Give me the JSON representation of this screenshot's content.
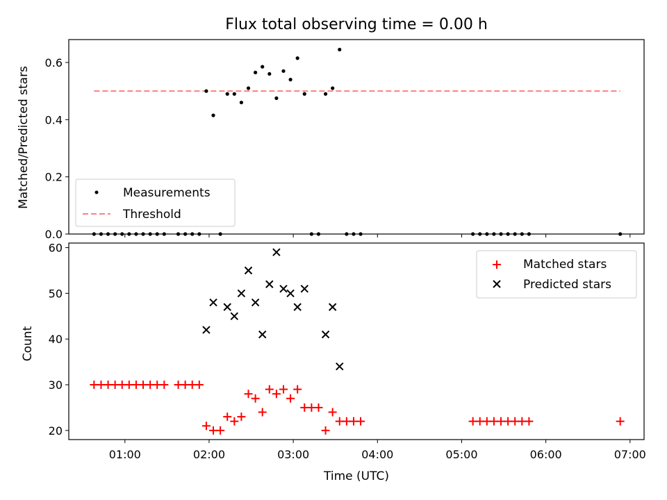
{
  "chart_data": [
    {
      "type": "scatter",
      "title": "Flux total observing time = 0.00 h",
      "xlabel": "",
      "ylabel": "Matched/Predicted stars",
      "xlim": [
        "00:20",
        "07:10"
      ],
      "ylim": [
        0,
        0.68
      ],
      "yticks": [
        0.0,
        0.2,
        0.4,
        0.6
      ],
      "ytick_labels": [
        "0.0",
        "0.2",
        "0.4",
        "0.6"
      ],
      "x_tick_labels_shown": false,
      "legend_position": "lower-left",
      "series": [
        {
          "name": "Measurements",
          "color": "#000000",
          "marker": "dot",
          "points": [
            [
              "00:38",
              0
            ],
            [
              "00:43",
              0
            ],
            [
              "00:48",
              0
            ],
            [
              "00:53",
              0
            ],
            [
              "00:58",
              0
            ],
            [
              "01:03",
              0
            ],
            [
              "01:08",
              0
            ],
            [
              "01:13",
              0
            ],
            [
              "01:18",
              0
            ],
            [
              "01:23",
              0
            ],
            [
              "01:28",
              0
            ],
            [
              "01:38",
              0
            ],
            [
              "01:43",
              0
            ],
            [
              "01:48",
              0
            ],
            [
              "01:53",
              0
            ],
            [
              "01:58",
              0.5
            ],
            [
              "02:03",
              0.415
            ],
            [
              "02:08",
              0
            ],
            [
              "02:13",
              0.49
            ],
            [
              "02:18",
              0.49
            ],
            [
              "02:23",
              0.46
            ],
            [
              "02:28",
              0.51
            ],
            [
              "02:33",
              0.565
            ],
            [
              "02:38",
              0.585
            ],
            [
              "02:43",
              0.56
            ],
            [
              "02:48",
              0.475
            ],
            [
              "02:53",
              0.57
            ],
            [
              "02:58",
              0.54
            ],
            [
              "03:03",
              0.615
            ],
            [
              "03:08",
              0.49
            ],
            [
              "03:13",
              0
            ],
            [
              "03:18",
              0
            ],
            [
              "03:23",
              0.49
            ],
            [
              "03:28",
              0.51
            ],
            [
              "03:33",
              0.645
            ],
            [
              "03:38",
              0
            ],
            [
              "03:43",
              0
            ],
            [
              "03:48",
              0
            ],
            [
              "05:08",
              0
            ],
            [
              "05:13",
              0
            ],
            [
              "05:18",
              0
            ],
            [
              "05:23",
              0
            ],
            [
              "05:28",
              0
            ],
            [
              "05:33",
              0
            ],
            [
              "05:38",
              0
            ],
            [
              "05:43",
              0
            ],
            [
              "05:48",
              0
            ],
            [
              "06:53",
              0
            ]
          ]
        },
        {
          "name": "Threshold",
          "color": "#ff7f7f",
          "style": "dashed",
          "points": [
            [
              "00:38",
              0.5
            ],
            [
              "06:53",
              0.5
            ]
          ]
        }
      ]
    },
    {
      "type": "scatter",
      "title": "",
      "xlabel": "Time (UTC)",
      "ylabel": "Count",
      "xlim": [
        "00:20",
        "07:10"
      ],
      "ylim": [
        18,
        61
      ],
      "yticks": [
        20,
        30,
        40,
        50,
        60
      ],
      "xtick_labels": [
        "01:00",
        "02:00",
        "03:00",
        "04:00",
        "05:00",
        "06:00",
        "07:00"
      ],
      "legend_position": "upper-right",
      "series": [
        {
          "name": "Matched stars",
          "color": "#ff0000",
          "marker": "plus",
          "points": [
            [
              "00:38",
              30
            ],
            [
              "00:43",
              30
            ],
            [
              "00:48",
              30
            ],
            [
              "00:53",
              30
            ],
            [
              "00:58",
              30
            ],
            [
              "01:03",
              30
            ],
            [
              "01:08",
              30
            ],
            [
              "01:13",
              30
            ],
            [
              "01:18",
              30
            ],
            [
              "01:23",
              30
            ],
            [
              "01:28",
              30
            ],
            [
              "01:38",
              30
            ],
            [
              "01:43",
              30
            ],
            [
              "01:48",
              30
            ],
            [
              "01:53",
              30
            ],
            [
              "01:58",
              21
            ],
            [
              "02:03",
              20
            ],
            [
              "02:08",
              20
            ],
            [
              "02:13",
              23
            ],
            [
              "02:18",
              22
            ],
            [
              "02:23",
              23
            ],
            [
              "02:28",
              28
            ],
            [
              "02:33",
              27
            ],
            [
              "02:38",
              24
            ],
            [
              "02:43",
              29
            ],
            [
              "02:48",
              28
            ],
            [
              "02:53",
              29
            ],
            [
              "02:58",
              27
            ],
            [
              "03:03",
              29
            ],
            [
              "03:08",
              25
            ],
            [
              "03:13",
              25
            ],
            [
              "03:18",
              25
            ],
            [
              "03:23",
              20
            ],
            [
              "03:28",
              24
            ],
            [
              "03:33",
              22
            ],
            [
              "03:38",
              22
            ],
            [
              "03:43",
              22
            ],
            [
              "03:48",
              22
            ],
            [
              "05:08",
              22
            ],
            [
              "05:13",
              22
            ],
            [
              "05:18",
              22
            ],
            [
              "05:23",
              22
            ],
            [
              "05:28",
              22
            ],
            [
              "05:33",
              22
            ],
            [
              "05:38",
              22
            ],
            [
              "05:43",
              22
            ],
            [
              "05:48",
              22
            ],
            [
              "06:53",
              22
            ]
          ]
        },
        {
          "name": "Predicted stars",
          "color": "#000000",
          "marker": "x",
          "points": [
            [
              "01:58",
              42
            ],
            [
              "02:03",
              48
            ],
            [
              "02:13",
              47
            ],
            [
              "02:18",
              45
            ],
            [
              "02:23",
              50
            ],
            [
              "02:28",
              55
            ],
            [
              "02:33",
              48
            ],
            [
              "02:38",
              41
            ],
            [
              "02:43",
              52
            ],
            [
              "02:48",
              59
            ],
            [
              "02:53",
              51
            ],
            [
              "02:58",
              50
            ],
            [
              "03:03",
              47
            ],
            [
              "03:08",
              51
            ],
            [
              "03:23",
              41
            ],
            [
              "03:28",
              47
            ],
            [
              "03:33",
              34
            ]
          ]
        }
      ]
    }
  ]
}
